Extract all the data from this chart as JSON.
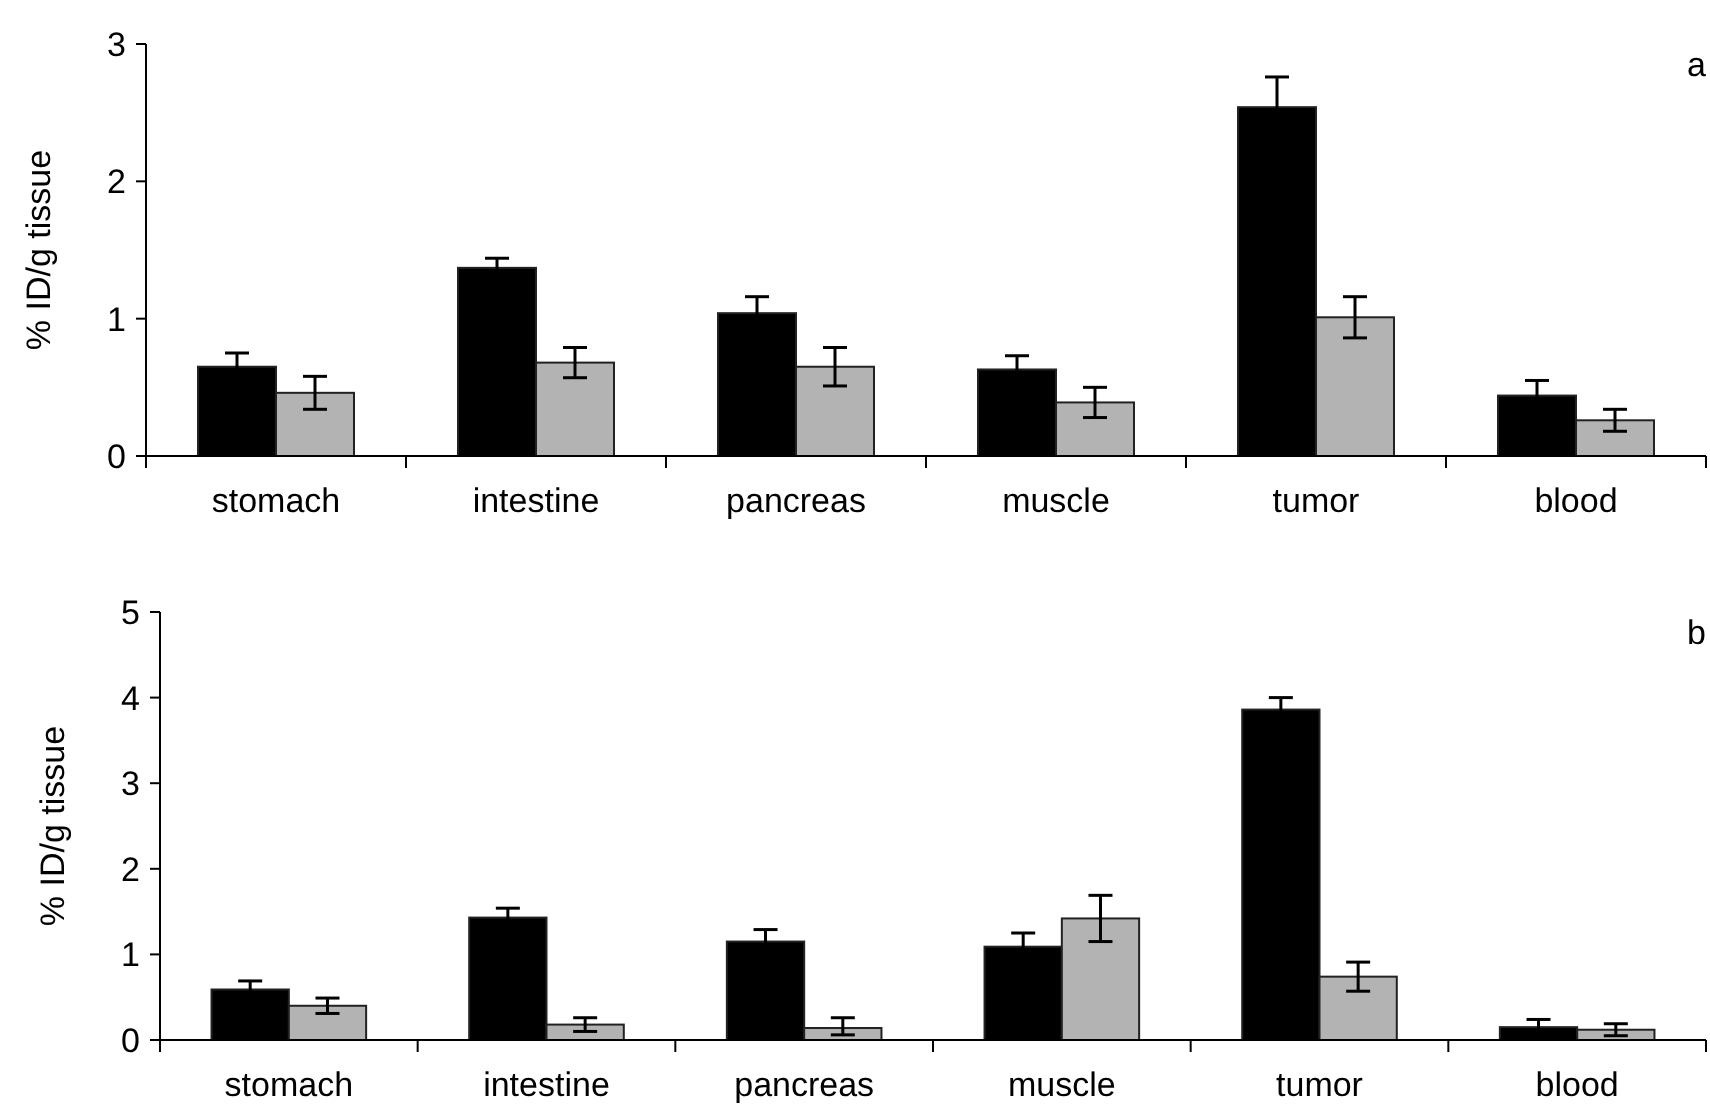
{
  "chart_data": [
    {
      "type": "bar",
      "ylabel": "% ID/g tissue",
      "annotations": [
        "a"
      ],
      "categories": [
        "stomach",
        "intestine",
        "pancreas",
        "muscle",
        "tumor",
        "blood"
      ],
      "series": [
        {
          "color": "#000000",
          "values": [
            0.65,
            1.37,
            1.04,
            0.63,
            2.54,
            0.44
          ],
          "errors": [
            0.1,
            0.07,
            0.12,
            0.1,
            0.22,
            0.11
          ]
        },
        {
          "color": "#b3b3b3",
          "values": [
            0.46,
            0.68,
            0.65,
            0.39,
            1.01,
            0.26
          ],
          "errors": [
            0.12,
            0.11,
            0.14,
            0.11,
            0.15,
            0.08
          ]
        }
      ],
      "ylim": [
        0,
        3
      ],
      "yticks": [
        0,
        1,
        2,
        3
      ],
      "grid": false
    },
    {
      "type": "bar",
      "ylabel": "% ID/g tissue",
      "annotations": [
        "b"
      ],
      "categories": [
        "stomach",
        "intestine",
        "pancreas",
        "muscle",
        "tumor",
        "blood"
      ],
      "series": [
        {
          "color": "#000000",
          "values": [
            0.59,
            1.43,
            1.15,
            1.09,
            3.86,
            0.15
          ],
          "errors": [
            0.1,
            0.11,
            0.14,
            0.16,
            0.14,
            0.09
          ]
        },
        {
          "color": "#b3b3b3",
          "values": [
            0.4,
            0.18,
            0.14,
            1.42,
            0.74,
            0.12
          ],
          "errors": [
            0.09,
            0.08,
            [
              0.06,
              0.26
            ],
            0.27,
            0.17,
            0.07
          ]
        }
      ],
      "ylim": [
        0,
        5
      ],
      "yticks": [
        0,
        1,
        2,
        3,
        4,
        5
      ],
      "grid": false
    }
  ]
}
